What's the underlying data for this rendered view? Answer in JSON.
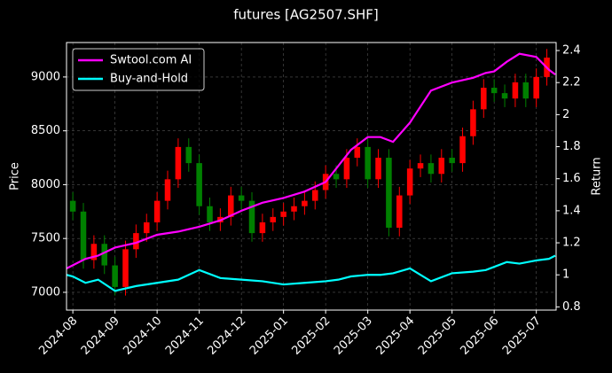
{
  "chart_data": {
    "type": "candlestick",
    "title": "futures [AG2507.SHF]",
    "ylabel": "Price",
    "y2label": "Return",
    "xlim": [
      -0.15,
      11.47
    ],
    "xticks": [
      {
        "value": 0,
        "label": "2024-08"
      },
      {
        "value": 1,
        "label": "2024-09"
      },
      {
        "value": 2,
        "label": "2024-10"
      },
      {
        "value": 3,
        "label": "2024-11"
      },
      {
        "value": 4,
        "label": "2024-12"
      },
      {
        "value": 5,
        "label": "2025-01"
      },
      {
        "value": 6,
        "label": "2025-02"
      },
      {
        "value": 7,
        "label": "2025-03"
      },
      {
        "value": 8,
        "label": "2025-04"
      },
      {
        "value": 9,
        "label": "2025-05"
      },
      {
        "value": 10,
        "label": "2025-06"
      },
      {
        "value": 11,
        "label": "2025-07"
      }
    ],
    "ylim": [
      6835,
      9320
    ],
    "yticks": [
      7000,
      7500,
      8000,
      8500,
      9000
    ],
    "y2lim": [
      0.78,
      2.45
    ],
    "y2ticks": [
      0.8,
      1.0,
      1.2,
      1.4,
      1.6,
      1.8,
      2.0,
      2.2,
      2.4
    ],
    "grid": true,
    "legend": "upper left",
    "up_color": "#ff0000",
    "down_color": "#008000",
    "candles": {
      "x": [
        0,
        0.25,
        0.5,
        0.75,
        1,
        1.25,
        1.5,
        1.75,
        2,
        2.25,
        2.5,
        2.75,
        3,
        3.25,
        3.5,
        3.75,
        4,
        4.25,
        4.5,
        4.75,
        5,
        5.25,
        5.5,
        5.75,
        6,
        6.25,
        6.5,
        6.75,
        7,
        7.25,
        7.5,
        7.75,
        8,
        8.25,
        8.5,
        8.75,
        9,
        9.25,
        9.5,
        9.75,
        10,
        10.25,
        10.5,
        10.75,
        11,
        11.25
      ],
      "open": [
        7850,
        7750,
        7300,
        7450,
        7250,
        7050,
        7400,
        7550,
        7650,
        7850,
        8050,
        8350,
        8200,
        7800,
        7650,
        7700,
        7900,
        7850,
        7550,
        7650,
        7700,
        7750,
        7800,
        7850,
        7950,
        8100,
        8050,
        8250,
        8350,
        8050,
        8250,
        7600,
        7900,
        8150,
        8200,
        8100,
        8250,
        8200,
        8450,
        8700,
        8900,
        8850,
        8800,
        8950,
        8800,
        9000
      ],
      "high": [
        7930,
        7830,
        7530,
        7530,
        7330,
        7480,
        7630,
        7730,
        7930,
        8130,
        8430,
        8430,
        8280,
        7880,
        7780,
        7980,
        7980,
        7930,
        7730,
        7780,
        7830,
        7880,
        7930,
        8030,
        8180,
        8180,
        8330,
        8430,
        8430,
        8330,
        8330,
        7980,
        8230,
        8280,
        8280,
        8330,
        8330,
        8530,
        8780,
        8980,
        8980,
        8930,
        9030,
        9030,
        9080,
        9260
      ],
      "low": [
        7670,
        7220,
        7220,
        7170,
        6970,
        6970,
        7320,
        7470,
        7570,
        7770,
        7970,
        8120,
        7720,
        7570,
        7570,
        7620,
        7770,
        7470,
        7470,
        7570,
        7620,
        7670,
        7720,
        7770,
        7870,
        7970,
        7970,
        8170,
        7970,
        7970,
        7520,
        7520,
        7820,
        8070,
        8020,
        8020,
        8120,
        8120,
        8370,
        8620,
        8770,
        8720,
        8720,
        8720,
        8720,
        8920
      ],
      "close": [
        7750,
        7300,
        7450,
        7250,
        7050,
        7400,
        7550,
        7650,
        7850,
        8050,
        8350,
        8200,
        7800,
        7650,
        7700,
        7900,
        7850,
        7550,
        7650,
        7700,
        7750,
        7800,
        7850,
        7950,
        8100,
        8050,
        8250,
        8350,
        8050,
        8250,
        7600,
        7900,
        8150,
        8200,
        8100,
        8250,
        8200,
        8450,
        8700,
        8900,
        8850,
        8800,
        8950,
        8800,
        9000,
        9180
      ]
    },
    "series": [
      {
        "name": "Swtool.com AI",
        "color": "#ff00ff",
        "axis": "y2",
        "x": [
          -0.15,
          0,
          0.3,
          0.6,
          1,
          1.5,
          2,
          2.5,
          3,
          3.5,
          4,
          4.5,
          5,
          5.5,
          6,
          6.3,
          6.6,
          7,
          7.3,
          7.6,
          8,
          8.5,
          9,
          9.5,
          9.8,
          10,
          10.3,
          10.6,
          11,
          11.3,
          11.45
        ],
        "values": [
          1.04,
          1.06,
          1.1,
          1.12,
          1.17,
          1.2,
          1.25,
          1.27,
          1.3,
          1.34,
          1.4,
          1.45,
          1.48,
          1.52,
          1.58,
          1.68,
          1.78,
          1.86,
          1.86,
          1.83,
          1.95,
          2.15,
          2.2,
          2.23,
          2.26,
          2.27,
          2.33,
          2.38,
          2.36,
          2.28,
          2.25
        ]
      },
      {
        "name": "Buy-and-Hold",
        "color": "#00ffff",
        "axis": "y2",
        "x": [
          -0.15,
          0,
          0.3,
          0.6,
          1,
          1.5,
          2,
          2.5,
          3,
          3.5,
          4,
          4.5,
          5,
          5.5,
          6,
          6.3,
          6.6,
          7,
          7.3,
          7.6,
          8,
          8.5,
          9,
          9.5,
          9.8,
          10,
          10.3,
          10.6,
          11,
          11.3,
          11.45
        ],
        "values": [
          1.0,
          0.99,
          0.95,
          0.97,
          0.9,
          0.93,
          0.95,
          0.97,
          1.03,
          0.98,
          0.97,
          0.96,
          0.94,
          0.95,
          0.96,
          0.97,
          0.99,
          1.0,
          1.0,
          1.01,
          1.04,
          0.96,
          1.01,
          1.02,
          1.03,
          1.05,
          1.08,
          1.07,
          1.09,
          1.1,
          1.12
        ]
      }
    ]
  }
}
